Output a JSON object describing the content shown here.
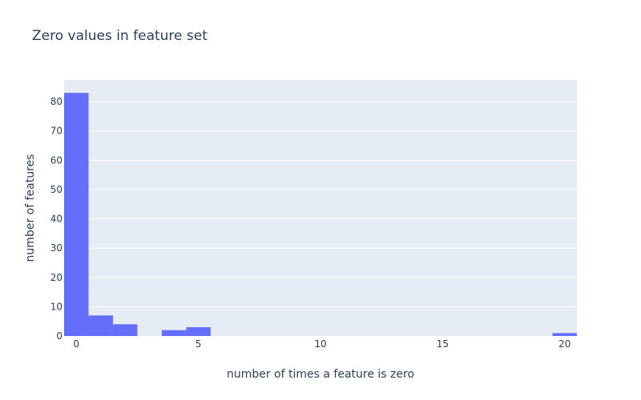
{
  "chart_data": {
    "type": "bar",
    "title": "Zero values in feature set",
    "xlabel": "number of times a feature is zero",
    "ylabel": "number of features",
    "bins": [
      {
        "x": 0,
        "count": 83
      },
      {
        "x": 1,
        "count": 7
      },
      {
        "x": 2,
        "count": 4
      },
      {
        "x": 3,
        "count": 0
      },
      {
        "x": 4,
        "count": 2
      },
      {
        "x": 5,
        "count": 3
      },
      {
        "x": 20,
        "count": 1
      }
    ],
    "bin_width": 1,
    "xlim": [
      -0.5,
      20.5
    ],
    "ylim": [
      0,
      87.4
    ],
    "x_ticks": [
      0,
      5,
      10,
      15,
      20
    ],
    "y_ticks": [
      0,
      10,
      20,
      30,
      40,
      50,
      60,
      70,
      80
    ],
    "grid": true,
    "colors": {
      "bar": "#636efa",
      "plot_background": "#e5ecf6",
      "grid": "#ffffff",
      "text": "#2a3f5f"
    }
  }
}
